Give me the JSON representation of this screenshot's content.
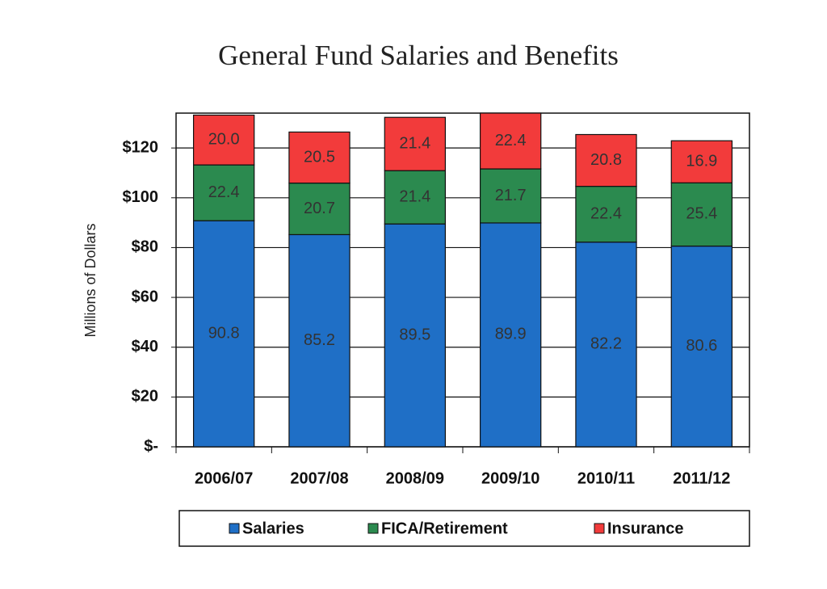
{
  "chart_data": {
    "type": "stacked-bar",
    "title": "General Fund Salaries and Benefits",
    "y_label": "Millions of Dollars",
    "categories": [
      "2006/07",
      "2007/08",
      "2008/09",
      "2009/10",
      "2010/11",
      "2011/12"
    ],
    "series": [
      {
        "name": "Salaries",
        "color": "#1f6fc6",
        "values": [
          90.8,
          85.2,
          89.5,
          89.9,
          82.2,
          80.6
        ]
      },
      {
        "name": "FICA/Retirement",
        "color": "#2b8a4f",
        "values": [
          22.4,
          20.7,
          21.4,
          21.7,
          22.4,
          25.4
        ]
      },
      {
        "name": "Insurance",
        "color": "#f23b3b",
        "values": [
          20.0,
          20.5,
          21.4,
          22.4,
          20.8,
          16.9
        ],
        "value_labels": [
          "20.0",
          "20.5",
          "21.4",
          "22.4",
          "20.8",
          "16.9"
        ]
      }
    ],
    "ylim": [
      0,
      134
    ],
    "yticks": [
      {
        "value": 0,
        "label": "$-"
      },
      {
        "value": 20,
        "label": "$20"
      },
      {
        "value": 40,
        "label": "$40"
      },
      {
        "value": 60,
        "label": "$60"
      },
      {
        "value": 80,
        "label": "$80"
      },
      {
        "value": 100,
        "label": "$100"
      },
      {
        "value": 120,
        "label": "$120"
      }
    ],
    "grid": true,
    "legend": "bottom"
  }
}
